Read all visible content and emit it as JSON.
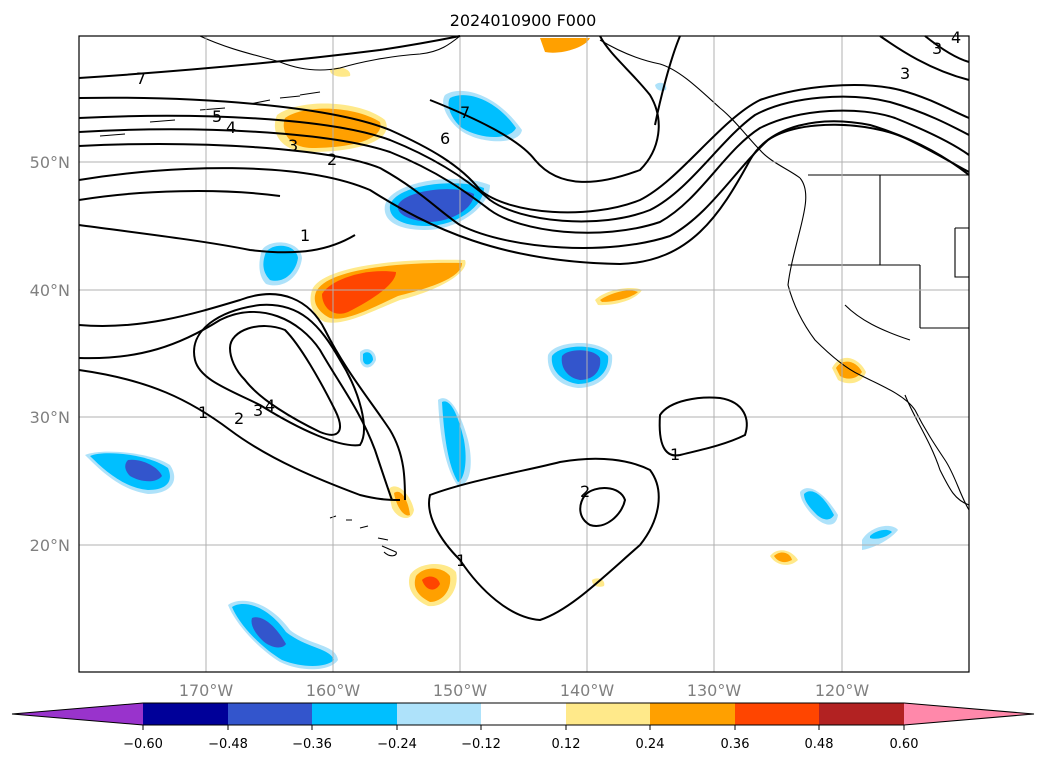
{
  "title": "2024010900 F000",
  "lat_labels": [
    "50°N",
    "40°N",
    "30°N",
    "20°N"
  ],
  "lon_labels": [
    "170°W",
    "160°W",
    "150°W",
    "140°W",
    "130°W",
    "120°W"
  ],
  "contour_labels": [
    "7",
    "5",
    "4",
    "3",
    "2",
    "7",
    "6",
    "1",
    "3",
    "1",
    "2",
    "3",
    "4",
    "1",
    "2",
    "1",
    "3",
    "4"
  ],
  "colorbar": {
    "tick_labels": [
      "−0.60",
      "−0.48",
      "−0.36",
      "−0.24",
      "−0.12",
      "0.12",
      "0.24",
      "0.36",
      "0.48",
      "0.60"
    ],
    "colors": [
      "#9933cc",
      "#000099",
      "#3355cc",
      "#00bfff",
      "#aee2fa",
      "#ffffff",
      "#ffe98a",
      "#ffa000",
      "#ff4500",
      "#b22222",
      "#ff88aa"
    ]
  }
}
